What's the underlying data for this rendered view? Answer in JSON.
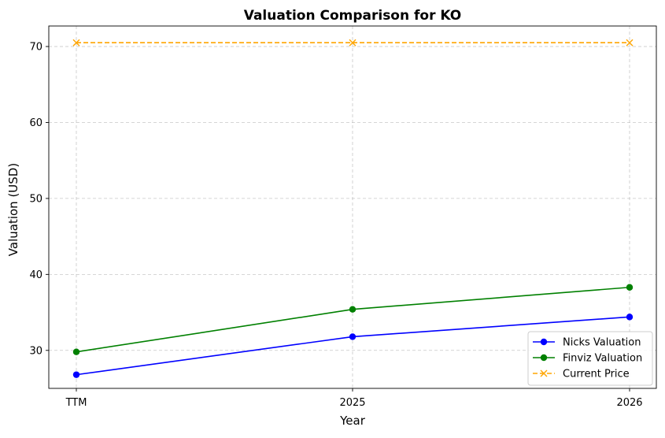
{
  "chart_data": {
    "type": "line",
    "title": "Valuation Comparison for KO",
    "xlabel": "Year",
    "ylabel": "Valuation (USD)",
    "categories": [
      "TTM",
      "2025",
      "2026"
    ],
    "ylim": [
      25.0,
      72.7
    ],
    "yticks": [
      30,
      40,
      50,
      60,
      70
    ],
    "grid": true,
    "legend_position": "lower right",
    "series": [
      {
        "name": "Nicks Valuation",
        "values": [
          26.8,
          31.8,
          34.4
        ],
        "color": "#0000ff",
        "marker": "circle",
        "linestyle": "solid"
      },
      {
        "name": "Finviz Valuation",
        "values": [
          29.8,
          35.4,
          38.3
        ],
        "color": "#008000",
        "marker": "circle",
        "linestyle": "solid"
      },
      {
        "name": "Current Price",
        "values": [
          70.5,
          70.5,
          70.5
        ],
        "color": "#ffa500",
        "marker": "x",
        "linestyle": "dashed"
      }
    ]
  }
}
